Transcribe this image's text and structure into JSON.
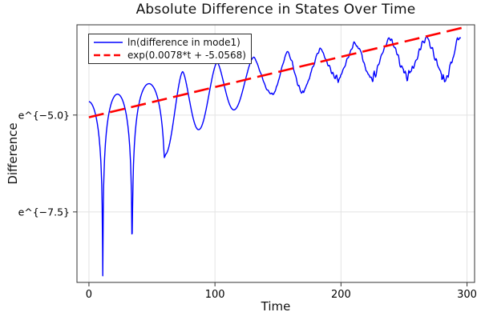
{
  "chart_data": {
    "type": "line",
    "title": "Absolute Difference in States Over Time",
    "xlabel": "Time",
    "ylabel": "Difference",
    "grid": true,
    "legend_position": "top-left",
    "background": "#ffffff",
    "x_axis": {
      "lim": [
        -9.5,
        306
      ],
      "ticks": [
        {
          "label": "0",
          "value": 0
        },
        {
          "label": "100",
          "value": 100
        },
        {
          "label": "200",
          "value": 200
        },
        {
          "label": "300",
          "value": 300
        }
      ]
    },
    "y_axis": {
      "scale": "ln",
      "lim_ln": [
        -9.32,
        -2.67
      ],
      "ticks": [
        {
          "label": "e^{−5.0}",
          "value_ln": -5.0
        },
        {
          "label": "e^{−7.5}",
          "value_ln": -7.5
        }
      ]
    },
    "series": [
      {
        "name": "ln(difference in mode1)",
        "color": "#0000ff",
        "style": "solid",
        "width": 1.4,
        "t_range": [
          0,
          295
        ],
        "shape_note": "oscillating arches with cusp-like minima; envelope rises exponentially; jagged noise grows after t≈125",
        "peaks_t_ln": [
          [
            0,
            -4.65
          ],
          [
            23,
            -4.46
          ],
          [
            47,
            -4.19
          ],
          [
            74.4,
            -3.88
          ],
          [
            102.4,
            -3.64
          ],
          [
            129.7,
            -3.51
          ],
          [
            157,
            -3.37
          ],
          [
            181.8,
            -3.31
          ],
          [
            210.4,
            -3.16
          ],
          [
            236.5,
            -3.02
          ],
          [
            267.6,
            -3.0
          ],
          [
            295,
            -2.96
          ]
        ],
        "dips_t_ln": [
          [
            11,
            -9.15
          ],
          [
            34.3,
            -8.06
          ],
          [
            61,
            -6.01
          ],
          [
            87.7,
            -5.37
          ],
          [
            115.7,
            -4.86
          ],
          [
            145.6,
            -4.4
          ],
          [
            169.7,
            -4.36
          ],
          [
            197.7,
            -3.99
          ],
          [
            225,
            -3.93
          ],
          [
            252.4,
            -3.89
          ],
          [
            282.3,
            -3.93
          ]
        ]
      },
      {
        "name": "exp(0.0078*t + -5.0568)",
        "color": "#ff0000",
        "style": "dashed",
        "width": 2.6,
        "fit": {
          "slope": 0.0078,
          "intercept": -5.0568
        },
        "t_range": [
          0,
          296
        ]
      }
    ],
    "colors": {
      "grid": "#e3e3e3",
      "frame": "#333333",
      "text": "#000000"
    }
  }
}
